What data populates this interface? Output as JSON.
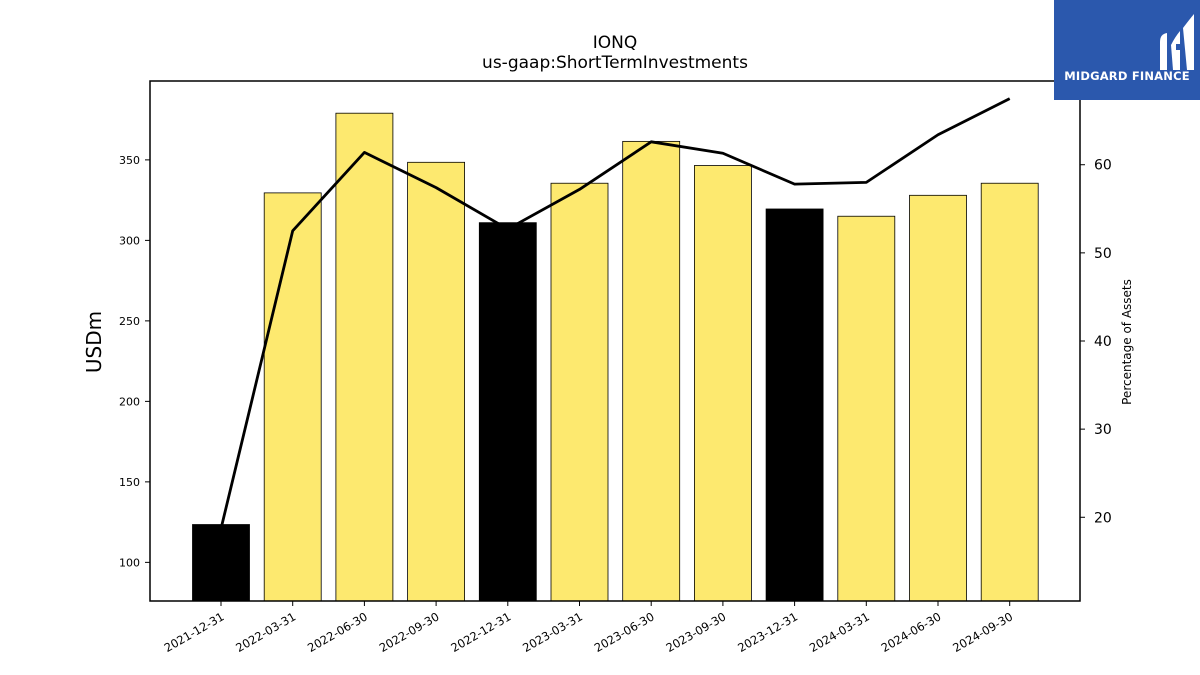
{
  "logo": {
    "text": "MIDGARD FINANCE",
    "background": "#2b58ad",
    "icon": "midgard-logo-icon"
  },
  "chart_data": {
    "type": "bar",
    "title": "IONQ",
    "subtitle": "us-gaap:ShortTermInvestments",
    "ylabel": "USDm",
    "y2label": "Percentage of Assets",
    "categories": [
      "2021-12-31",
      "2022-03-31",
      "2022-06-30",
      "2022-09-30",
      "2022-12-31",
      "2023-03-31",
      "2023-06-30",
      "2023-09-30",
      "2023-12-31",
      "2024-03-31",
      "2024-06-30",
      "2024-09-30"
    ],
    "ylim": [
      76,
      399
    ],
    "yticks": [
      100,
      150,
      200,
      250,
      300,
      350
    ],
    "y2lim": [
      10.5,
      69.5
    ],
    "y2ticks": [
      20,
      30,
      40,
      50,
      60
    ],
    "grid": false,
    "series": [
      {
        "kind": "bar",
        "values": [
          123.5,
          329.5,
          379,
          348.5,
          311,
          335.5,
          361.5,
          346.5,
          319.5,
          315,
          328,
          335.5
        ],
        "colors": [
          "#000000",
          "#fde96f",
          "#fde96f",
          "#fde96f",
          "#000000",
          "#fde96f",
          "#fde96f",
          "#fde96f",
          "#000000",
          "#fde96f",
          "#fde96f",
          "#fde96f"
        ]
      },
      {
        "kind": "line",
        "axis": "right",
        "color": "#000000",
        "values": [
          18.7,
          52.5,
          61.4,
          57.4,
          52.7,
          57.2,
          62.6,
          61.3,
          57.8,
          58.0,
          63.4,
          67.5
        ]
      }
    ]
  }
}
